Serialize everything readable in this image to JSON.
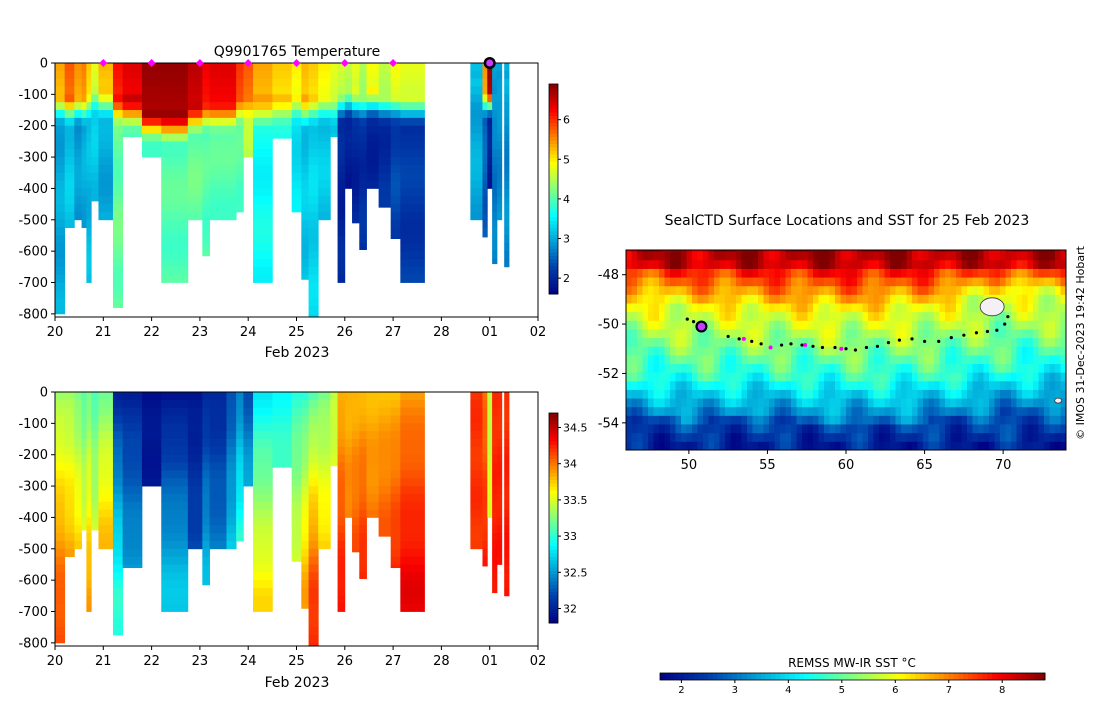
{
  "chart_data": [
    {
      "type": "heatmap",
      "title": "Q9901765  Temperature",
      "xlabel": "Feb 2023",
      "ylabel": "",
      "x_tick_labels": [
        "20",
        "21",
        "22",
        "23",
        "24",
        "25",
        "26",
        "27",
        "28",
        "01",
        "02"
      ],
      "y_tick_labels": [
        "0",
        "-100",
        "-200",
        "-300",
        "-400",
        "-500",
        "-600",
        "-700",
        "-800"
      ],
      "xlim": [
        20,
        30
      ],
      "ylim": [
        -810,
        0
      ],
      "colorbar": {
        "ticks": [
          "2",
          "3",
          "4",
          "5",
          "6"
        ],
        "range": [
          1.6,
          6.9
        ]
      },
      "profile_markers_days": [
        21,
        22,
        23,
        24,
        25,
        26,
        27
      ],
      "latest_marker_day": 29,
      "profiles": [
        {
          "x0": 20.0,
          "x1": 20.2,
          "max_depth": 800,
          "mix_depth": 90,
          "surface": 5.4,
          "deep": 3.0
        },
        {
          "x0": 20.2,
          "x1": 20.4,
          "max_depth": 525,
          "mix_depth": 100,
          "surface": 5.8,
          "deep": 3.2
        },
        {
          "x0": 20.4,
          "x1": 20.55,
          "max_depth": 500,
          "mix_depth": 95,
          "surface": 5.5,
          "deep": 2.9
        },
        {
          "x0": 20.55,
          "x1": 20.65,
          "max_depth": 525,
          "mix_depth": 100,
          "surface": 5.6,
          "deep": 3.0
        },
        {
          "x0": 20.65,
          "x1": 20.75,
          "max_depth": 700,
          "mix_depth": 90,
          "surface": 5.2,
          "deep": 3.1
        },
        {
          "x0": 20.75,
          "x1": 20.9,
          "max_depth": 440,
          "mix_depth": 70,
          "surface": 4.8,
          "deep": 3.2
        },
        {
          "x0": 20.9,
          "x1": 21.2,
          "max_depth": 500,
          "mix_depth": 80,
          "surface": 5.3,
          "deep": 3.0
        },
        {
          "x0": 21.2,
          "x1": 21.4,
          "max_depth": 780,
          "mix_depth": 100,
          "surface": 6.2,
          "deep": 4.1
        },
        {
          "x0": 21.4,
          "x1": 21.8,
          "max_depth": 235,
          "mix_depth": 110,
          "surface": 6.4,
          "deep": 4.0
        },
        {
          "x0": 21.8,
          "x1": 22.2,
          "max_depth": 300,
          "mix_depth": 150,
          "surface": 6.8,
          "deep": 4.0
        },
        {
          "x0": 22.2,
          "x1": 22.75,
          "max_depth": 700,
          "mix_depth": 160,
          "surface": 6.8,
          "deep": 4.0
        },
        {
          "x0": 22.75,
          "x1": 23.05,
          "max_depth": 500,
          "mix_depth": 130,
          "surface": 6.6,
          "deep": 4.1
        },
        {
          "x0": 23.05,
          "x1": 23.2,
          "max_depth": 615,
          "mix_depth": 120,
          "surface": 6.3,
          "deep": 4.0
        },
        {
          "x0": 23.2,
          "x1": 23.75,
          "max_depth": 500,
          "mix_depth": 120,
          "surface": 6.4,
          "deep": 4.0
        },
        {
          "x0": 23.75,
          "x1": 23.9,
          "max_depth": 475,
          "mix_depth": 100,
          "surface": 6.0,
          "deep": 4.0
        },
        {
          "x0": 23.9,
          "x1": 24.1,
          "max_depth": 300,
          "mix_depth": 90,
          "surface": 5.8,
          "deep": 4.5
        },
        {
          "x0": 24.1,
          "x1": 24.5,
          "max_depth": 700,
          "mix_depth": 110,
          "surface": 5.4,
          "deep": 3.6
        },
        {
          "x0": 24.5,
          "x1": 24.9,
          "max_depth": 240,
          "mix_depth": 100,
          "surface": 5.2,
          "deep": 3.7
        },
        {
          "x0": 24.9,
          "x1": 25.1,
          "max_depth": 475,
          "mix_depth": 90,
          "surface": 5.0,
          "deep": 3.4
        },
        {
          "x0": 25.1,
          "x1": 25.25,
          "max_depth": 690,
          "mix_depth": 110,
          "surface": 5.3,
          "deep": 3.2
        },
        {
          "x0": 25.25,
          "x1": 25.45,
          "max_depth": 810,
          "mix_depth": 100,
          "surface": 5.2,
          "deep": 3.3
        },
        {
          "x0": 25.45,
          "x1": 25.7,
          "max_depth": 500,
          "mix_depth": 95,
          "surface": 5.0,
          "deep": 3.2
        },
        {
          "x0": 25.7,
          "x1": 25.85,
          "max_depth": 235,
          "mix_depth": 100,
          "surface": 4.8,
          "deep": 3.2
        },
        {
          "x0": 25.85,
          "x1": 26.0,
          "max_depth": 700,
          "mix_depth": 90,
          "surface": 4.7,
          "deep": 2.0
        },
        {
          "x0": 26.0,
          "x1": 26.15,
          "max_depth": 400,
          "mix_depth": 80,
          "surface": 4.6,
          "deep": 1.9
        },
        {
          "x0": 26.15,
          "x1": 26.3,
          "max_depth": 510,
          "mix_depth": 85,
          "surface": 4.8,
          "deep": 2.0
        },
        {
          "x0": 26.3,
          "x1": 26.45,
          "max_depth": 595,
          "mix_depth": 90,
          "surface": 4.5,
          "deep": 2.1
        },
        {
          "x0": 26.45,
          "x1": 26.7,
          "max_depth": 400,
          "mix_depth": 80,
          "surface": 4.9,
          "deep": 2.0
        },
        {
          "x0": 26.7,
          "x1": 26.95,
          "max_depth": 460,
          "mix_depth": 90,
          "surface": 4.6,
          "deep": 2.1
        },
        {
          "x0": 26.95,
          "x1": 27.15,
          "max_depth": 560,
          "mix_depth": 90,
          "surface": 4.9,
          "deep": 2.3
        },
        {
          "x0": 27.15,
          "x1": 27.65,
          "max_depth": 700,
          "mix_depth": 100,
          "surface": 4.8,
          "deep": 2.2
        },
        {
          "x0": 28.6,
          "x1": 28.85,
          "max_depth": 500,
          "mix_depth": 60,
          "surface": 3.2,
          "deep": 3.0
        },
        {
          "x0": 28.85,
          "x1": 28.95,
          "max_depth": 555,
          "mix_depth": 80,
          "surface": 5.5,
          "deep": 2.5
        },
        {
          "x0": 28.95,
          "x1": 29.05,
          "max_depth": 400,
          "mix_depth": 80,
          "surface": 6.8,
          "deep": 1.9
        },
        {
          "x0": 29.05,
          "x1": 29.15,
          "max_depth": 640,
          "mix_depth": 90,
          "surface": 3.0,
          "deep": 2.7
        },
        {
          "x0": 29.15,
          "x1": 29.25,
          "max_depth": 500,
          "mix_depth": 50,
          "surface": 3.0,
          "deep": 2.8
        },
        {
          "x0": 29.3,
          "x1": 29.4,
          "max_depth": 650,
          "mix_depth": 40,
          "surface": 3.1,
          "deep": 2.8
        }
      ]
    },
    {
      "type": "heatmap",
      "title": "",
      "xlabel": "Feb 2023",
      "ylabel": "",
      "x_tick_labels": [
        "20",
        "21",
        "22",
        "23",
        "24",
        "25",
        "26",
        "27",
        "28",
        "01",
        "02"
      ],
      "y_tick_labels": [
        "0",
        "-100",
        "-200",
        "-300",
        "-400",
        "-500",
        "-600",
        "-700",
        "-800"
      ],
      "xlim": [
        20,
        30
      ],
      "ylim": [
        -810,
        0
      ],
      "colorbar": {
        "ticks": [
          "32",
          "32.5",
          "33",
          "33.5",
          "34",
          "34.5"
        ],
        "range": [
          31.8,
          34.7
        ]
      },
      "profiles": [
        {
          "x0": 20.0,
          "x1": 20.2,
          "max_depth": 800,
          "surface": 33.3,
          "deep": 34.1
        },
        {
          "x0": 20.2,
          "x1": 20.4,
          "max_depth": 525,
          "surface": 33.3,
          "deep": 34.0
        },
        {
          "x0": 20.4,
          "x1": 20.55,
          "max_depth": 500,
          "surface": 33.2,
          "deep": 33.9
        },
        {
          "x0": 20.55,
          "x1": 20.65,
          "max_depth": 440,
          "surface": 33.1,
          "deep": 33.7
        },
        {
          "x0": 20.65,
          "x1": 20.75,
          "max_depth": 700,
          "surface": 33.2,
          "deep": 33.9
        },
        {
          "x0": 20.75,
          "x1": 20.9,
          "max_depth": 440,
          "surface": 33.1,
          "deep": 33.6
        },
        {
          "x0": 20.9,
          "x1": 21.2,
          "max_depth": 500,
          "surface": 33.2,
          "deep": 34.0
        },
        {
          "x0": 21.2,
          "x1": 21.4,
          "max_depth": 775,
          "surface": 32.0,
          "deep": 33.0
        },
        {
          "x0": 21.4,
          "x1": 21.8,
          "max_depth": 560,
          "surface": 32.0,
          "deep": 32.6
        },
        {
          "x0": 21.8,
          "x1": 22.2,
          "max_depth": 300,
          "surface": 31.9,
          "deep": 32.0
        },
        {
          "x0": 22.2,
          "x1": 22.75,
          "max_depth": 700,
          "surface": 31.9,
          "deep": 32.7
        },
        {
          "x0": 22.75,
          "x1": 23.05,
          "max_depth": 500,
          "surface": 31.9,
          "deep": 32.3
        },
        {
          "x0": 23.05,
          "x1": 23.2,
          "max_depth": 615,
          "surface": 32.0,
          "deep": 32.7
        },
        {
          "x0": 23.2,
          "x1": 23.55,
          "max_depth": 500,
          "surface": 32.0,
          "deep": 32.5
        },
        {
          "x0": 23.55,
          "x1": 23.75,
          "max_depth": 500,
          "surface": 32.2,
          "deep": 32.8
        },
        {
          "x0": 23.75,
          "x1": 23.9,
          "max_depth": 475,
          "surface": 32.4,
          "deep": 33.2
        },
        {
          "x0": 23.9,
          "x1": 24.1,
          "max_depth": 300,
          "surface": 32.2,
          "deep": 33.0
        },
        {
          "x0": 24.1,
          "x1": 24.5,
          "max_depth": 700,
          "surface": 32.8,
          "deep": 33.7
        },
        {
          "x0": 24.5,
          "x1": 24.9,
          "max_depth": 240,
          "surface": 32.9,
          "deep": 33.3
        },
        {
          "x0": 24.9,
          "x1": 25.1,
          "max_depth": 540,
          "surface": 33.0,
          "deep": 33.6
        },
        {
          "x0": 25.1,
          "x1": 25.25,
          "max_depth": 690,
          "surface": 33.0,
          "deep": 33.9
        },
        {
          "x0": 25.25,
          "x1": 25.45,
          "max_depth": 810,
          "surface": 33.1,
          "deep": 34.2
        },
        {
          "x0": 25.45,
          "x1": 25.7,
          "max_depth": 500,
          "surface": 33.2,
          "deep": 33.9
        },
        {
          "x0": 25.7,
          "x1": 25.85,
          "max_depth": 235,
          "surface": 33.4,
          "deep": 33.7
        },
        {
          "x0": 25.85,
          "x1": 26.0,
          "max_depth": 700,
          "surface": 33.8,
          "deep": 34.3
        },
        {
          "x0": 26.0,
          "x1": 26.15,
          "max_depth": 400,
          "surface": 33.8,
          "deep": 34.1
        },
        {
          "x0": 26.15,
          "x1": 26.3,
          "max_depth": 510,
          "surface": 33.8,
          "deep": 34.2
        },
        {
          "x0": 26.3,
          "x1": 26.45,
          "max_depth": 595,
          "surface": 33.8,
          "deep": 34.3
        },
        {
          "x0": 26.45,
          "x1": 26.7,
          "max_depth": 400,
          "surface": 33.8,
          "deep": 34.1
        },
        {
          "x0": 26.7,
          "x1": 26.95,
          "max_depth": 460,
          "surface": 33.8,
          "deep": 34.2
        },
        {
          "x0": 26.95,
          "x1": 27.15,
          "max_depth": 560,
          "surface": 33.8,
          "deep": 34.3
        },
        {
          "x0": 27.15,
          "x1": 27.65,
          "max_depth": 700,
          "surface": 33.9,
          "deep": 34.4
        },
        {
          "x0": 28.6,
          "x1": 28.85,
          "max_depth": 500,
          "surface": 34.2,
          "deep": 34.2
        },
        {
          "x0": 28.85,
          "x1": 28.95,
          "max_depth": 555,
          "surface": 34.0,
          "deep": 34.3
        },
        {
          "x0": 28.95,
          "x1": 29.05,
          "max_depth": 400,
          "surface": 33.4,
          "deep": 33.6
        },
        {
          "x0": 29.05,
          "x1": 29.15,
          "max_depth": 640,
          "surface": 34.2,
          "deep": 34.3
        },
        {
          "x0": 29.15,
          "x1": 29.25,
          "max_depth": 550,
          "surface": 34.2,
          "deep": 34.3
        },
        {
          "x0": 29.3,
          "x1": 29.4,
          "max_depth": 650,
          "surface": 34.2,
          "deep": 34.3
        }
      ]
    },
    {
      "type": "heatmap",
      "title": "SealCTD Surface Locations and SST for 25 Feb 2023",
      "xlabel": "",
      "ylabel": "",
      "x_tick_labels": [
        "50",
        "55",
        "60",
        "65",
        "70"
      ],
      "y_tick_labels": [
        "-48",
        "-50",
        "-52",
        "-54"
      ],
      "xlim": [
        46,
        74
      ],
      "ylim": [
        -55.1,
        -47.0
      ],
      "colorbar": {
        "label": "REMSS MW-IR SST °C",
        "ticks": [
          "2",
          "3",
          "4",
          "5",
          "6",
          "7",
          "8"
        ],
        "range": [
          1.6,
          8.8
        ]
      },
      "track": [
        [
          49.9,
          -49.8
        ],
        [
          50.3,
          -49.9
        ],
        [
          50.8,
          -50.1
        ],
        [
          52.5,
          -50.5
        ],
        [
          53.2,
          -50.6
        ],
        [
          54.0,
          -50.7
        ],
        [
          54.6,
          -50.8
        ],
        [
          55.2,
          -50.95
        ],
        [
          55.9,
          -50.85
        ],
        [
          56.5,
          -50.8
        ],
        [
          57.2,
          -50.85
        ],
        [
          57.9,
          -50.9
        ],
        [
          58.5,
          -50.95
        ],
        [
          59.3,
          -50.95
        ],
        [
          60.0,
          -51.0
        ],
        [
          60.6,
          -51.05
        ],
        [
          61.3,
          -50.95
        ],
        [
          62.0,
          -50.9
        ],
        [
          62.7,
          -50.75
        ],
        [
          63.4,
          -50.65
        ],
        [
          64.2,
          -50.6
        ],
        [
          65.0,
          -50.7
        ],
        [
          65.9,
          -50.7
        ],
        [
          66.7,
          -50.55
        ],
        [
          67.5,
          -50.45
        ],
        [
          68.3,
          -50.35
        ],
        [
          69.0,
          -50.3
        ],
        [
          69.6,
          -50.25
        ],
        [
          70.1,
          -50.0
        ],
        [
          70.3,
          -49.7
        ]
      ],
      "track_highlight": [
        [
          53.5,
          -50.6
        ],
        [
          55.2,
          -50.95
        ],
        [
          57.4,
          -50.85
        ],
        [
          59.7,
          -51.0
        ]
      ],
      "current_location": [
        50.8,
        -50.1
      ],
      "cold_front_lat": {
        "lon": [
          46,
          50,
          55,
          60,
          65,
          70,
          74
        ],
        "lat": [
          -52.2,
          -52.4,
          -52.3,
          -52.5,
          -52.4,
          -52.0,
          -51.8
        ]
      },
      "warm_front_lat": {
        "lon": [
          46,
          50,
          55,
          60,
          65,
          70,
          74
        ],
        "lat": [
          -49.1,
          -49.3,
          -49.5,
          -49.6,
          -49.4,
          -48.6,
          -48.8
        ]
      },
      "hot_front_lat": {
        "lon": [
          46,
          50,
          55,
          60,
          65,
          70,
          74
        ],
        "lat": [
          -47.6,
          -47.7,
          -47.8,
          -47.9,
          -47.8,
          -47.6,
          -47.7
        ]
      },
      "credit": "© IMOS 31-Dec-2023 19:42 Hobart"
    }
  ]
}
